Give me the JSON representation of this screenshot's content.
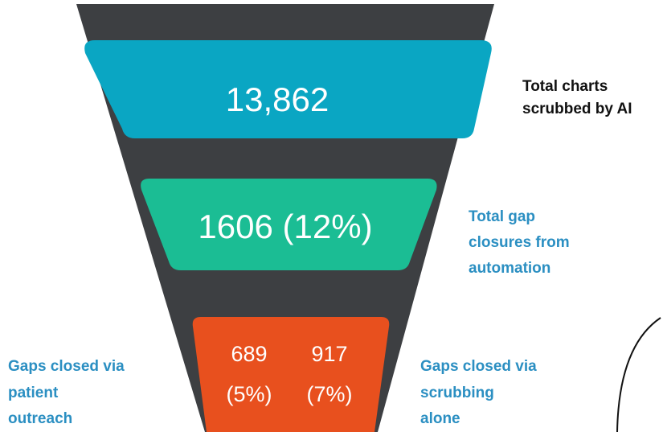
{
  "stages": [
    {
      "value": "13,862",
      "label": [
        "Total charts",
        "scrubbed by AI"
      ]
    },
    {
      "value": "1606 (12%)",
      "label": [
        "Total gap",
        "closures from",
        "automation"
      ]
    }
  ],
  "split": {
    "left": {
      "value": "689",
      "percent": "(5%)",
      "label": [
        "Gaps closed via",
        "patient",
        "outreach"
      ]
    },
    "right": {
      "value": "917",
      "percent": "(7%)",
      "label": [
        "Gaps closed via",
        "scrubbing",
        "alone"
      ]
    }
  }
}
